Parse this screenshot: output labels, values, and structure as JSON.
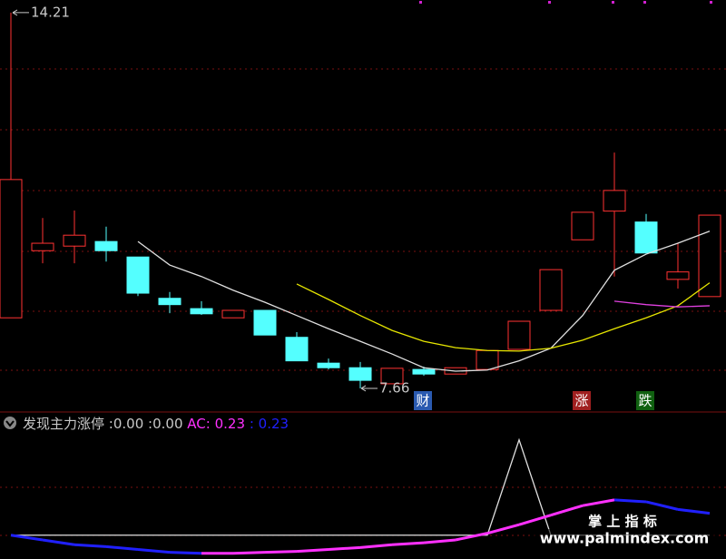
{
  "chart_data": [
    {
      "type": "candlestick",
      "open": [
        8.89,
        10.06,
        10.14,
        10.22,
        9.95,
        9.23,
        9.05,
        8.89,
        9.02,
        8.55,
        8.1,
        8.02,
        7.74,
        7.99,
        7.91,
        7.99,
        8.34,
        9.02,
        10.25,
        10.75,
        10.56,
        9.56,
        9.26
      ],
      "high": [
        14.21,
        10.63,
        10.76,
        10.48,
        9.95,
        9.34,
        9.18,
        9.02,
        9.02,
        8.64,
        8.18,
        8.12,
        8.01,
        8.04,
        8.02,
        8.32,
        8.83,
        9.73,
        10.73,
        11.77,
        10.7,
        10.19,
        10.68
      ],
      "low": [
        8.89,
        9.84,
        9.84,
        9.87,
        9.27,
        8.97,
        8.94,
        8.89,
        8.59,
        8.14,
        7.99,
        7.66,
        7.74,
        7.88,
        7.91,
        7.99,
        8.34,
        9.02,
        10.25,
        9.61,
        10.02,
        9.4,
        9.26
      ],
      "close": [
        11.3,
        10.19,
        10.33,
        10.06,
        9.32,
        9.12,
        8.96,
        9.02,
        8.59,
        8.14,
        8.02,
        7.8,
        8.01,
        7.91,
        8.02,
        8.32,
        8.83,
        9.73,
        10.73,
        11.11,
        10.02,
        9.69,
        10.68
      ],
      "up_color": "#ff3232",
      "down_color": "#54ffff",
      "lines": [
        {
          "color": "#e0e0e0",
          "values": [
            null,
            null,
            null,
            null,
            10.22,
            9.81,
            9.61,
            9.37,
            9.16,
            8.93,
            8.7,
            8.48,
            8.26,
            8.02,
            7.96,
            7.98,
            8.14,
            8.36,
            8.93,
            9.72,
            10.0,
            10.19,
            10.4
          ]
        },
        {
          "color": "#e6e600",
          "values": [
            null,
            null,
            null,
            null,
            null,
            null,
            null,
            null,
            null,
            9.48,
            9.21,
            8.93,
            8.67,
            8.48,
            8.37,
            8.32,
            8.31,
            8.36,
            8.5,
            8.7,
            8.89,
            9.1,
            9.5
          ]
        },
        {
          "color": "#e040e0",
          "values": [
            null,
            null,
            null,
            null,
            null,
            null,
            null,
            null,
            null,
            null,
            null,
            null,
            null,
            null,
            null,
            null,
            null,
            null,
            null,
            9.18,
            9.12,
            9.08,
            9.1
          ]
        }
      ],
      "ylim": [
        7.28,
        14.43
      ],
      "max_label": 14.21,
      "min_label": 7.66,
      "signals": [
        {
          "text": "财",
          "color": "#2a5ab0"
        },
        {
          "text": "涨",
          "color": "#a02020"
        },
        {
          "text": "跌",
          "color": "#106010"
        }
      ]
    },
    {
      "type": "line",
      "title": "发现主力涨停",
      "separator": ":",
      "ylim": [
        -0.25,
        1.14
      ],
      "series": [
        {
          "color": "#e0e0e0",
          "values": [
            0,
            0,
            0,
            0,
            0,
            0,
            0,
            0,
            0,
            0,
            0,
            0,
            0,
            0,
            0,
            0,
            1,
            0,
            0,
            0,
            0,
            0,
            0
          ],
          "readouts": [
            {
              "value": 0,
              "label": "0.00"
            },
            {
              "value": 0,
              "label": "0.00"
            }
          ]
        },
        {
          "name": "AC",
          "rising_color": "#ff30ff",
          "falling_color": "#2020ff",
          "values": [
            0,
            -0.05,
            -0.1,
            -0.12,
            -0.15,
            -0.18,
            -0.19,
            -0.19,
            -0.18,
            -0.17,
            -0.15,
            -0.13,
            -0.1,
            -0.08,
            -0.05,
            0.02,
            0.11,
            0.21,
            0.31,
            0.37,
            0.35,
            0.27,
            0.23
          ],
          "readouts": [
            {
              "value": 0.23,
              "label": "0.23"
            },
            {
              "value": 0.23,
              "label": "0.23"
            }
          ]
        }
      ],
      "watermark": {
        "title": "掌 上 指 标",
        "url": "www.palmindex.com"
      }
    }
  ]
}
